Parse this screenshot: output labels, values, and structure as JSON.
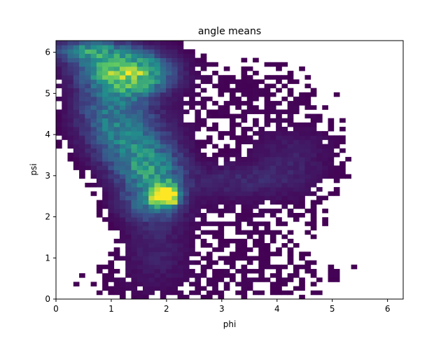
{
  "chart_data": {
    "type": "heatmap",
    "title": "angle means",
    "xlabel": "phi",
    "ylabel": "psi",
    "xlim": [
      0,
      6.2832
    ],
    "ylim": [
      0,
      6.2832
    ],
    "xticks": [
      0,
      1,
      2,
      3,
      4,
      5,
      6
    ],
    "yticks": [
      0,
      1,
      2,
      3,
      4,
      5,
      6
    ],
    "bins": 60,
    "colormap": [
      "#440154",
      "#3b528b",
      "#21918c",
      "#5ec962",
      "#fde725"
    ],
    "background": "#ffffff",
    "density_components": [
      {
        "phi": 0.55,
        "psi": 6.05,
        "sigma_phi": 0.4,
        "sigma_psi": 0.18,
        "weight": 0.42
      },
      {
        "phi": 1.05,
        "psi": 5.65,
        "sigma_phi": 0.5,
        "sigma_psi": 0.35,
        "weight": 0.55
      },
      {
        "phi": 1.35,
        "psi": 5.35,
        "sigma_phi": 0.35,
        "sigma_psi": 0.3,
        "weight": 0.35
      },
      {
        "phi": 1.8,
        "psi": 5.5,
        "sigma_phi": 0.35,
        "sigma_psi": 0.35,
        "weight": 0.25
      },
      {
        "phi": 1.0,
        "psi": 4.6,
        "sigma_phi": 0.45,
        "sigma_psi": 0.55,
        "weight": 0.35
      },
      {
        "phi": 1.4,
        "psi": 3.8,
        "sigma_phi": 0.5,
        "sigma_psi": 0.5,
        "weight": 0.35
      },
      {
        "phi": 1.7,
        "psi": 3.1,
        "sigma_phi": 0.4,
        "sigma_psi": 0.4,
        "weight": 0.45
      },
      {
        "phi": 1.95,
        "psi": 2.55,
        "sigma_phi": 0.18,
        "sigma_psi": 0.2,
        "weight": 1.0
      },
      {
        "phi": 2.05,
        "psi": 2.45,
        "sigma_phi": 0.1,
        "sigma_psi": 0.1,
        "weight": 0.5
      },
      {
        "phi": 1.7,
        "psi": 2.3,
        "sigma_phi": 0.4,
        "sigma_psi": 0.3,
        "weight": 0.3
      },
      {
        "phi": 1.8,
        "psi": 1.3,
        "sigma_phi": 0.4,
        "sigma_psi": 0.6,
        "weight": 0.12
      },
      {
        "phi": 3.3,
        "psi": 2.9,
        "sigma_phi": 0.8,
        "sigma_psi": 0.3,
        "weight": 0.12
      },
      {
        "phi": 4.3,
        "psi": 3.5,
        "sigma_phi": 0.5,
        "sigma_psi": 0.5,
        "weight": 0.1
      },
      {
        "phi": 3.5,
        "psi": 2.0,
        "sigma_phi": 1.2,
        "sigma_psi": 0.7,
        "weight": 0.035
      },
      {
        "phi": 3.4,
        "psi": 4.9,
        "sigma_phi": 1.5,
        "sigma_psi": 0.9,
        "weight": 0.03
      },
      {
        "phi": 1.8,
        "psi": 0.4,
        "sigma_phi": 1.5,
        "sigma_psi": 0.4,
        "weight": 0.03
      },
      {
        "phi": 4.5,
        "psi": 0.5,
        "sigma_phi": 1.3,
        "sigma_psi": 0.5,
        "weight": 0.02
      }
    ]
  }
}
